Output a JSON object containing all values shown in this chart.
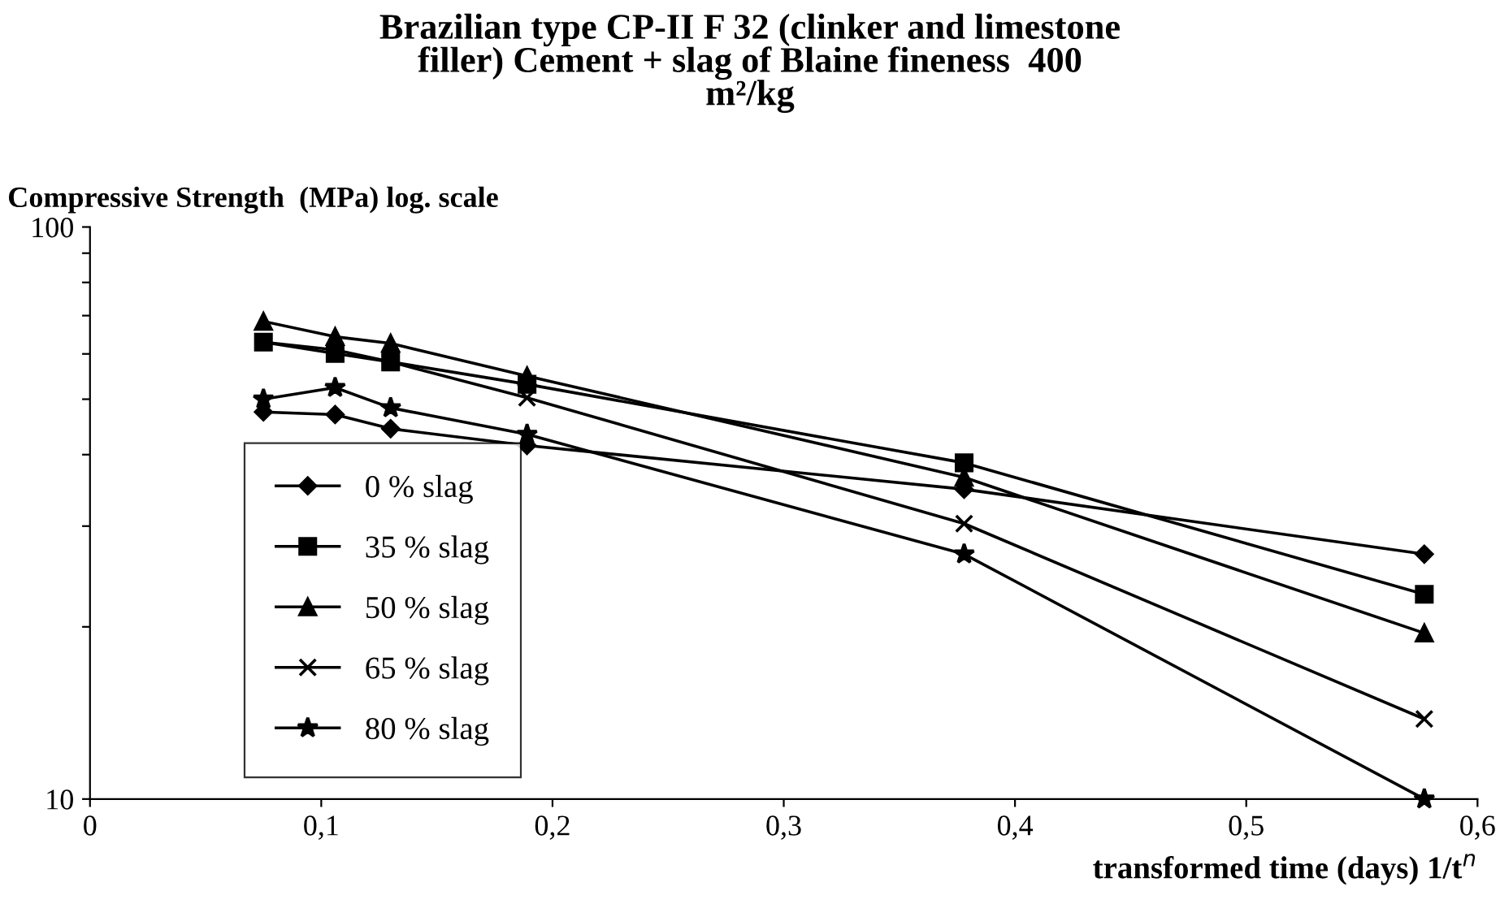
{
  "chart_data": {
    "type": "line",
    "title": "Brazilian type CP-II F 32 (clinker and limestone\nfiller) Cement + slag of Blaine fineness  400\nm²/kg",
    "ylabel": "Compressive Strength  (MPa) log. scale",
    "xlabel": "transformed time (days) 1/t$^{n}$",
    "x": [
      0.075,
      0.106,
      0.13,
      0.189,
      0.378,
      0.577
    ],
    "series": [
      {
        "name": "0 % slag",
        "color": "#000000",
        "marker": "diamond",
        "values": [
          47.5,
          47.0,
          44.4,
          41.5,
          34.8,
          26.8
        ]
      },
      {
        "name": "35 % slag",
        "color": "#000000",
        "marker": "square",
        "values": [
          62.9,
          60.1,
          58.1,
          53.1,
          38.7,
          22.8
        ]
      },
      {
        "name": "50 % slag",
        "color": "#000000",
        "marker": "triangle",
        "values": [
          68.4,
          64.3,
          62.6,
          54.9,
          36.5,
          19.5
        ]
      },
      {
        "name": "65 % slag",
        "color": "#000000",
        "marker": "cross",
        "values": [
          62.9,
          61.0,
          58.1,
          50.3,
          30.3,
          13.8
        ]
      },
      {
        "name": "80 % slag",
        "color": "#000000",
        "marker": "star",
        "values": [
          50.0,
          52.4,
          48.3,
          43.4,
          26.8,
          10
        ]
      }
    ],
    "log": "y",
    "xlim": [
      0,
      0.6
    ],
    "xticks": [
      0,
      {
        "value": 0.1,
        "label": "0,1"
      },
      {
        "value": 0.2,
        "label": "0,2"
      },
      {
        "value": 0.3,
        "label": "0,3"
      },
      {
        "value": 0.4,
        "label": "0,4"
      },
      {
        "value": 0.5,
        "label": "0,5"
      },
      {
        "value": 0.6,
        "label": "0,6"
      }
    ],
    "ylim": [
      10,
      100
    ],
    "yticks": [
      10,
      {
        "value": 20,
        "label": null
      },
      {
        "value": 30,
        "label": null
      },
      {
        "value": 40,
        "label": null
      },
      {
        "value": 50,
        "label": null
      },
      {
        "value": 60,
        "label": null
      },
      {
        "value": 70,
        "label": null
      },
      {
        "value": 80,
        "label": null
      },
      {
        "value": 90,
        "label": null
      },
      100
    ],
    "grid": false,
    "legend": "left",
    "line_style": "solid"
  }
}
